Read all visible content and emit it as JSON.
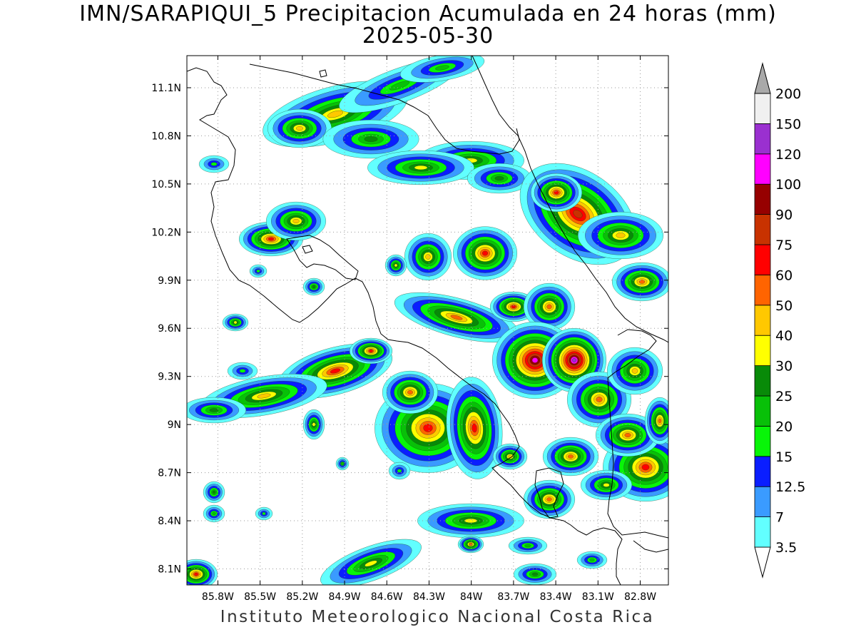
{
  "title": "IMN/SARAPIQUI_5 Precipitacion Acumulada en 24 horas (mm)",
  "date": "2025-05-30",
  "footer": "Instituto Meteorologico Nacional Costa Rica",
  "map": {
    "lon_range": [
      -86.02,
      -82.6
    ],
    "lat_range": [
      8.0,
      11.3
    ],
    "lon_ticks": [
      {
        "value": -85.8,
        "label": "85.8W"
      },
      {
        "value": -85.5,
        "label": "85.5W"
      },
      {
        "value": -85.2,
        "label": "85.2W"
      },
      {
        "value": -84.9,
        "label": "84.9W"
      },
      {
        "value": -84.6,
        "label": "84.6W"
      },
      {
        "value": -84.3,
        "label": "84.3W"
      },
      {
        "value": -84.0,
        "label": "84W"
      },
      {
        "value": -83.7,
        "label": "83.7W"
      },
      {
        "value": -83.4,
        "label": "83.4W"
      },
      {
        "value": -83.1,
        "label": "83.1W"
      },
      {
        "value": -82.8,
        "label": "82.8W"
      }
    ],
    "lat_ticks": [
      {
        "value": 11.1,
        "label": "11.1N"
      },
      {
        "value": 10.8,
        "label": "10.8N"
      },
      {
        "value": 10.5,
        "label": "10.5N"
      },
      {
        "value": 10.2,
        "label": "10.2N"
      },
      {
        "value": 9.9,
        "label": "9.9N"
      },
      {
        "value": 9.6,
        "label": "9.6N"
      },
      {
        "value": 9.3,
        "label": "9.3N"
      },
      {
        "value": 9.0,
        "label": "9N"
      },
      {
        "value": 8.7,
        "label": "8.7N"
      },
      {
        "value": 8.4,
        "label": "8.4N"
      },
      {
        "value": 8.1,
        "label": "8.1N"
      }
    ],
    "grid": true,
    "colors": {
      "border": "#000000",
      "coast": "#000000",
      "grid": "#9a9a9a"
    }
  },
  "colorbar": {
    "levels": [
      {
        "label": "3.5",
        "color": "#62ffff"
      },
      {
        "label": "7",
        "color": "#3a9bff"
      },
      {
        "label": "12.5",
        "color": "#0a1eff"
      },
      {
        "label": "15",
        "color": "#08f508"
      },
      {
        "label": "20",
        "color": "#08c008"
      },
      {
        "label": "25",
        "color": "#088a08"
      },
      {
        "label": "30",
        "color": "#ffff00"
      },
      {
        "label": "40",
        "color": "#ffc800"
      },
      {
        "label": "50",
        "color": "#ff6400"
      },
      {
        "label": "60",
        "color": "#ff0000"
      },
      {
        "label": "75",
        "color": "#c83200"
      },
      {
        "label": "90",
        "color": "#960000"
      },
      {
        "label": "100",
        "color": "#ff00ff"
      },
      {
        "label": "120",
        "color": "#9a30d0"
      },
      {
        "label": "150",
        "color": "#f0f0f0"
      },
      {
        "label": "200",
        "color": "#a9a9a9"
      }
    ]
  }
}
